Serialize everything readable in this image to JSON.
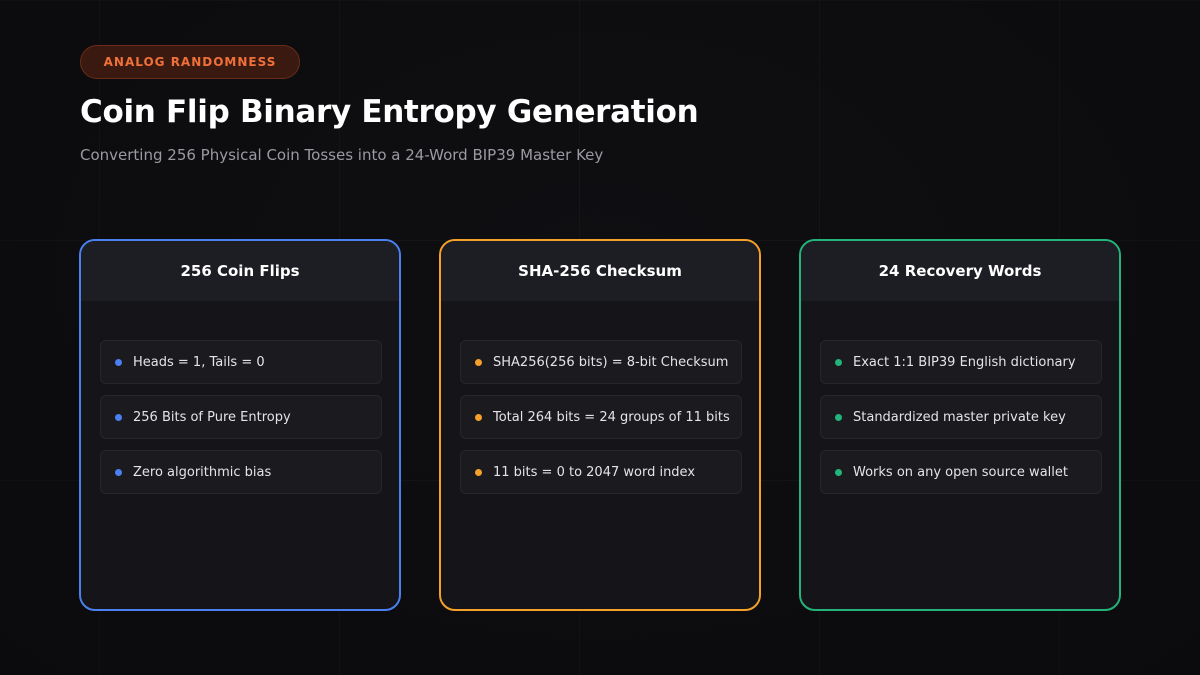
{
  "badge": "ANALOG RANDOMNESS",
  "title": "Coin Flip Binary Entropy Generation",
  "subtitle": "Converting 256 Physical Coin Tosses into a 24-Word BIP39 Master Key",
  "colors": {
    "blue": "#4a80f0",
    "orange": "#f4a12c",
    "green": "#22b47a",
    "badge_text": "#f0703a"
  },
  "cards": [
    {
      "title": "256 Coin Flips",
      "items": [
        "Heads = 1, Tails = 0",
        "256 Bits of Pure Entropy",
        "Zero algorithmic bias"
      ]
    },
    {
      "title": "SHA-256 Checksum",
      "items": [
        "SHA256(256 bits) = 8-bit Checksum",
        "Total 264 bits = 24 groups of 11 bits",
        "11 bits = 0 to 2047 word index"
      ]
    },
    {
      "title": "24 Recovery Words",
      "items": [
        "Exact 1:1 BIP39 English dictionary",
        "Standardized master private key",
        "Works on any open source wallet"
      ]
    }
  ]
}
